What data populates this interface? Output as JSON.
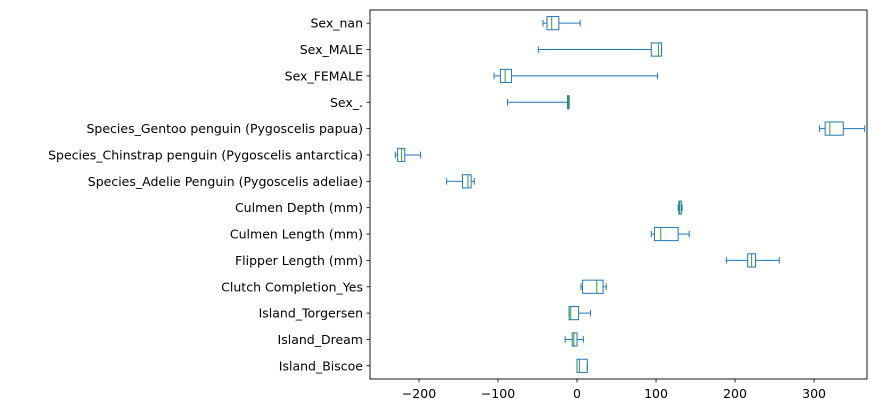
{
  "chart_data": {
    "type": "boxplot",
    "orientation": "horizontal",
    "title": "",
    "xlabel": "",
    "ylabel": "",
    "xlim": [
      -262,
      367
    ],
    "xticks": [
      -200,
      -100,
      0,
      100,
      200,
      300
    ],
    "xtick_labels": [
      "−200",
      "−100",
      "0",
      "100",
      "200",
      "300"
    ],
    "grid": false,
    "legend": "none",
    "colors": {
      "box": "#1f77b4",
      "median": "#2ca02c"
    },
    "categories": [
      "Island_Biscoe",
      "Island_Dream",
      "Island_Torgersen",
      "Clutch Completion_Yes",
      "Flipper Length (mm)",
      "Culmen Length (mm)",
      "Culmen Depth (mm)",
      "Species_Adelie Penguin (Pygoscelis adeliae)",
      "Species_Chinstrap penguin (Pygoscelis antarctica)",
      "Species_Gentoo penguin (Pygoscelis papua)",
      "Sex_.",
      "Sex_FEMALE",
      "Sex_MALE",
      "Sex_nan"
    ],
    "boxes": [
      {
        "label": "Island_Biscoe",
        "whislo": 0,
        "q1": 0,
        "med": 3,
        "q3": 13,
        "whishi": 13
      },
      {
        "label": "Island_Dream",
        "whislo": -15,
        "q1": -6,
        "med": -4,
        "q3": 0,
        "whishi": 8
      },
      {
        "label": "Island_Torgersen",
        "whislo": -10,
        "q1": -10,
        "med": -8,
        "q3": 2,
        "whishi": 17
      },
      {
        "label": "Clutch Completion_Yes",
        "whislo": 5,
        "q1": 7,
        "med": 25,
        "q3": 33,
        "whishi": 37
      },
      {
        "label": "Flipper Length (mm)",
        "whislo": 189,
        "q1": 216,
        "med": 221,
        "q3": 226,
        "whishi": 256
      },
      {
        "label": "Culmen Length (mm)",
        "whislo": 94,
        "q1": 98,
        "med": 106,
        "q3": 128,
        "whishi": 142
      },
      {
        "label": "Culmen Depth (mm)",
        "whislo": 128,
        "q1": 129,
        "med": 130,
        "q3": 132,
        "whishi": 133
      },
      {
        "label": "Species_Adelie Penguin (Pygoscelis adeliae)",
        "whislo": -165,
        "q1": -145,
        "med": -138,
        "q3": -134,
        "whishi": -130
      },
      {
        "label": "Species_Chinstrap penguin (Pygoscelis antarctica)",
        "whislo": -230,
        "q1": -227,
        "med": -222,
        "q3": -218,
        "whishi": -198
      },
      {
        "label": "Species_Gentoo penguin (Pygoscelis papua)",
        "whislo": 307,
        "q1": 314,
        "med": 320,
        "q3": 337,
        "whishi": 364
      },
      {
        "label": "Sex_.",
        "whislo": -88,
        "q1": -12,
        "med": -11,
        "q3": -10,
        "whishi": -10
      },
      {
        "label": "Sex_FEMALE",
        "whislo": -105,
        "q1": -97,
        "med": -91,
        "q3": -83,
        "whishi": 102
      },
      {
        "label": "Sex_MALE",
        "whislo": -49,
        "q1": 94,
        "med": 103,
        "q3": 107,
        "whishi": 107
      },
      {
        "label": "Sex_nan",
        "whislo": -43,
        "q1": -38,
        "med": -32,
        "q3": -23,
        "whishi": 4
      }
    ]
  }
}
